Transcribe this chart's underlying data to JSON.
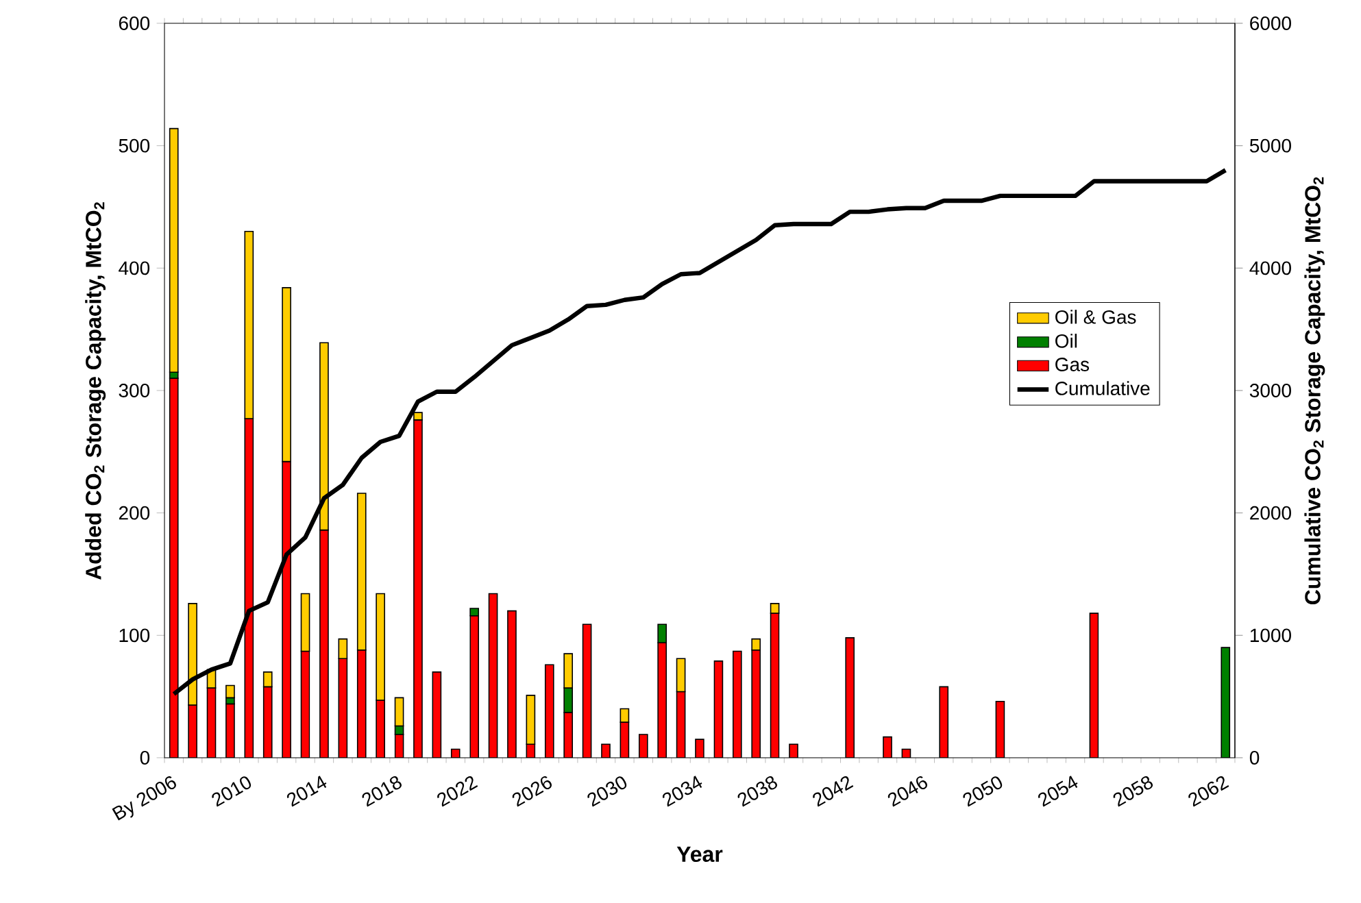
{
  "chart_data": {
    "type": "bar",
    "stacked": true,
    "xlabel": "Year",
    "ylabel": "Added CO$_{2}$ Storage Capacity, MtCO$_{2}$",
    "y2label": "Cumulative CO$_{2}$ Storage Capacity, MtCO$_{2}$",
    "categories": [
      "By 2006",
      null,
      null,
      null,
      "2010",
      null,
      null,
      null,
      "2014",
      null,
      null,
      null,
      "2018",
      null,
      null,
      null,
      "2022",
      null,
      null,
      null,
      "2026",
      null,
      null,
      null,
      "2030",
      null,
      null,
      null,
      "2034",
      null,
      null,
      null,
      "2038",
      null,
      null,
      null,
      "2042",
      null,
      null,
      null,
      "2046",
      null,
      null,
      null,
      "2050",
      null,
      null,
      null,
      "2054",
      null,
      null,
      null,
      "2058",
      null,
      null,
      null,
      "2062"
    ],
    "ylim": [
      0,
      600
    ],
    "yticks": [
      0,
      100,
      200,
      300,
      400,
      500,
      600
    ],
    "y2lim": [
      0,
      6000
    ],
    "y2ticks": [
      0,
      1000,
      2000,
      3000,
      4000,
      5000,
      6000
    ],
    "legend": "right",
    "series": [
      {
        "name": "Gas",
        "color": "#ff0000",
        "values": [
          310,
          43,
          57,
          44,
          277,
          58,
          242,
          87,
          186,
          81,
          88,
          47,
          19,
          276,
          70,
          7,
          116,
          134,
          120,
          11,
          76,
          37,
          109,
          11,
          29,
          19,
          94,
          54,
          15,
          79,
          87,
          88,
          118,
          11,
          null,
          null,
          98,
          null,
          17,
          7,
          null,
          58,
          null,
          null,
          46,
          null,
          null,
          null,
          null,
          118,
          null,
          null,
          null,
          null,
          null,
          null,
          null
        ]
      },
      {
        "name": "Oil",
        "color": "#008000",
        "values": [
          5,
          null,
          null,
          5,
          null,
          null,
          null,
          null,
          null,
          null,
          null,
          null,
          7,
          null,
          null,
          null,
          6,
          null,
          null,
          null,
          null,
          20,
          null,
          null,
          null,
          null,
          15,
          null,
          null,
          null,
          null,
          null,
          null,
          null,
          null,
          null,
          null,
          null,
          null,
          null,
          null,
          null,
          null,
          null,
          null,
          null,
          null,
          null,
          null,
          null,
          null,
          null,
          null,
          null,
          null,
          null,
          90
        ]
      },
      {
        "name": "Oil & Gas",
        "color": "#ffcc00",
        "values": [
          199,
          83,
          15,
          10,
          153,
          12,
          142,
          47,
          153,
          16,
          128,
          87,
          23,
          6,
          null,
          null,
          null,
          null,
          null,
          40,
          null,
          28,
          null,
          null,
          11,
          null,
          null,
          27,
          null,
          null,
          null,
          9,
          8,
          null,
          null,
          null,
          null,
          null,
          null,
          null,
          null,
          null,
          null,
          null,
          null,
          null,
          null,
          null,
          null,
          null,
          null,
          null,
          null,
          null,
          null,
          null,
          null
        ]
      },
      {
        "name": "Cumulative",
        "type": "line",
        "axis": "y2",
        "color": "#000000",
        "values": [
          520,
          640,
          720,
          770,
          1200,
          1270,
          1660,
          1800,
          2120,
          2230,
          2450,
          2580,
          2630,
          2910,
          2990,
          2990,
          3110,
          3240,
          3370,
          3430,
          3490,
          3580,
          3690,
          3700,
          3740,
          3760,
          3870,
          3950,
          3960,
          4050,
          4140,
          4230,
          4350,
          4360,
          4360,
          4360,
          4460,
          4460,
          4480,
          4490,
          4490,
          4550,
          4550,
          4550,
          4590,
          4590,
          4590,
          4590,
          4590,
          4710,
          4710,
          4710,
          4710,
          4710,
          4710,
          4710,
          4800
        ]
      }
    ]
  }
}
